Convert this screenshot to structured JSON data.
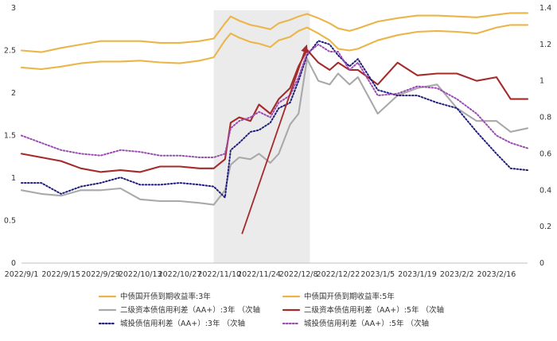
{
  "chart_data": {
    "type": "line",
    "x_ticks": [
      "2022/9/1",
      "2022/9/15",
      "2022/9/29",
      "2022/10/13",
      "2022/10/27",
      "2022/11/10",
      "2022/11/24",
      "2022/12/8",
      "2022/12/22",
      "2023/1/5",
      "2023/1/19",
      "2023/2/2",
      "2023/2/16"
    ],
    "x_start": "2022/9/1",
    "x_end": "2023/2/27",
    "y_left": {
      "ticks": [
        "0",
        "0.5",
        "1",
        "1.5",
        "2",
        "2.5",
        "3"
      ],
      "range": [
        0,
        3
      ]
    },
    "y_right": {
      "ticks": [
        "0",
        "0.2",
        "0.4",
        "0.6",
        "0.8",
        "1",
        "1.2",
        "1.4"
      ],
      "range": [
        0,
        1.4
      ]
    },
    "shaded_region": {
      "from": "2022/11/8",
      "to": "2022/12/12"
    },
    "arrow": {
      "from": [
        "2022/11/18",
        0.16
      ],
      "to": [
        "2022/12/11",
        1.2
      ],
      "color": "#A52A2A"
    },
    "legend": {
      "position": "bottom"
    },
    "series": [
      {
        "name": "中债国开债到期收益率:3年",
        "axis": "left",
        "color": "#EBB549",
        "dash": "solid",
        "points": [
          [
            "2022/9/1",
            2.3
          ],
          [
            "2022/9/8",
            2.28
          ],
          [
            "2022/9/15",
            2.31
          ],
          [
            "2022/9/22",
            2.35
          ],
          [
            "2022/9/29",
            2.37
          ],
          [
            "2022/10/6",
            2.37
          ],
          [
            "2022/10/13",
            2.38
          ],
          [
            "2022/10/20",
            2.36
          ],
          [
            "2022/10/27",
            2.35
          ],
          [
            "2022/11/3",
            2.38
          ],
          [
            "2022/11/8",
            2.42
          ],
          [
            "2022/11/12",
            2.62
          ],
          [
            "2022/11/14",
            2.7
          ],
          [
            "2022/11/17",
            2.65
          ],
          [
            "2022/11/21",
            2.6
          ],
          [
            "2022/11/24",
            2.58
          ],
          [
            "2022/11/28",
            2.54
          ],
          [
            "2022/12/1",
            2.62
          ],
          [
            "2022/12/5",
            2.66
          ],
          [
            "2022/12/8",
            2.73
          ],
          [
            "2022/12/11",
            2.77
          ],
          [
            "2022/12/15",
            2.7
          ],
          [
            "2022/12/19",
            2.62
          ],
          [
            "2022/12/22",
            2.52
          ],
          [
            "2022/12/26",
            2.5
          ],
          [
            "2022/12/29",
            2.52
          ],
          [
            "2023/1/5",
            2.62
          ],
          [
            "2023/1/12",
            2.68
          ],
          [
            "2023/1/19",
            2.72
          ],
          [
            "2023/1/26",
            2.73
          ],
          [
            "2023/2/2",
            2.72
          ],
          [
            "2023/2/9",
            2.7
          ],
          [
            "2023/2/16",
            2.77
          ],
          [
            "2023/2/21",
            2.8
          ],
          [
            "2023/2/27",
            2.8
          ]
        ]
      },
      {
        "name": "中债国开债到期收益率:5年",
        "axis": "left",
        "color": "#EBB549",
        "dash": "solid",
        "points": [
          [
            "2022/9/1",
            2.5
          ],
          [
            "2022/9/8",
            2.48
          ],
          [
            "2022/9/15",
            2.53
          ],
          [
            "2022/9/22",
            2.57
          ],
          [
            "2022/9/29",
            2.61
          ],
          [
            "2022/10/6",
            2.61
          ],
          [
            "2022/10/13",
            2.61
          ],
          [
            "2022/10/20",
            2.59
          ],
          [
            "2022/10/27",
            2.59
          ],
          [
            "2022/11/3",
            2.61
          ],
          [
            "2022/11/8",
            2.64
          ],
          [
            "2022/11/12",
            2.82
          ],
          [
            "2022/11/14",
            2.9
          ],
          [
            "2022/11/17",
            2.85
          ],
          [
            "2022/11/21",
            2.8
          ],
          [
            "2022/11/24",
            2.78
          ],
          [
            "2022/11/28",
            2.75
          ],
          [
            "2022/12/1",
            2.82
          ],
          [
            "2022/12/5",
            2.86
          ],
          [
            "2022/12/8",
            2.9
          ],
          [
            "2022/12/11",
            2.93
          ],
          [
            "2022/12/15",
            2.88
          ],
          [
            "2022/12/19",
            2.82
          ],
          [
            "2022/12/22",
            2.76
          ],
          [
            "2022/12/26",
            2.73
          ],
          [
            "2022/12/29",
            2.76
          ],
          [
            "2023/1/5",
            2.84
          ],
          [
            "2023/1/12",
            2.88
          ],
          [
            "2023/1/19",
            2.91
          ],
          [
            "2023/1/26",
            2.91
          ],
          [
            "2023/2/2",
            2.9
          ],
          [
            "2023/2/9",
            2.89
          ],
          [
            "2023/2/16",
            2.92
          ],
          [
            "2023/2/21",
            2.94
          ],
          [
            "2023/2/27",
            2.94
          ]
        ]
      },
      {
        "name": "二级资本债信用利差（AA+）:3年 （次轴",
        "axis": "right",
        "color": "#A9A9A9",
        "dash": "solid",
        "points": [
          [
            "2022/9/1",
            0.4
          ],
          [
            "2022/9/8",
            0.38
          ],
          [
            "2022/9/15",
            0.37
          ],
          [
            "2022/9/22",
            0.4
          ],
          [
            "2022/9/29",
            0.4
          ],
          [
            "2022/10/6",
            0.41
          ],
          [
            "2022/10/13",
            0.35
          ],
          [
            "2022/10/20",
            0.34
          ],
          [
            "2022/10/27",
            0.34
          ],
          [
            "2022/11/3",
            0.33
          ],
          [
            "2022/11/8",
            0.32
          ],
          [
            "2022/11/12",
            0.4
          ],
          [
            "2022/11/14",
            0.54
          ],
          [
            "2022/11/17",
            0.58
          ],
          [
            "2022/11/21",
            0.57
          ],
          [
            "2022/11/24",
            0.6
          ],
          [
            "2022/11/28",
            0.55
          ],
          [
            "2022/12/1",
            0.6
          ],
          [
            "2022/12/5",
            0.76
          ],
          [
            "2022/12/8",
            0.82
          ],
          [
            "2022/12/11",
            1.12
          ],
          [
            "2022/12/15",
            1.0
          ],
          [
            "2022/12/19",
            0.98
          ],
          [
            "2022/12/22",
            1.04
          ],
          [
            "2022/12/26",
            0.98
          ],
          [
            "2022/12/29",
            1.02
          ],
          [
            "2023/1/5",
            0.82
          ],
          [
            "2023/1/12",
            0.92
          ],
          [
            "2023/1/19",
            0.96
          ],
          [
            "2023/1/26",
            0.98
          ],
          [
            "2023/2/2",
            0.85
          ],
          [
            "2023/2/9",
            0.78
          ],
          [
            "2023/2/16",
            0.78
          ],
          [
            "2023/2/21",
            0.72
          ],
          [
            "2023/2/27",
            0.74
          ]
        ]
      },
      {
        "name": "二级资本债信用利差（AA+）:5年 （次轴",
        "axis": "right",
        "color": "#A52A2A",
        "dash": "solid",
        "points": [
          [
            "2022/9/1",
            0.6
          ],
          [
            "2022/9/8",
            0.58
          ],
          [
            "2022/9/15",
            0.56
          ],
          [
            "2022/9/22",
            0.52
          ],
          [
            "2022/9/29",
            0.5
          ],
          [
            "2022/10/6",
            0.51
          ],
          [
            "2022/10/13",
            0.5
          ],
          [
            "2022/10/20",
            0.53
          ],
          [
            "2022/10/27",
            0.53
          ],
          [
            "2022/11/3",
            0.52
          ],
          [
            "2022/11/8",
            0.52
          ],
          [
            "2022/11/12",
            0.57
          ],
          [
            "2022/11/14",
            0.77
          ],
          [
            "2022/11/17",
            0.8
          ],
          [
            "2022/11/21",
            0.78
          ],
          [
            "2022/11/24",
            0.87
          ],
          [
            "2022/11/28",
            0.82
          ],
          [
            "2022/12/1",
            0.9
          ],
          [
            "2022/12/5",
            0.96
          ],
          [
            "2022/12/8",
            1.08
          ],
          [
            "2022/12/11",
            1.17
          ],
          [
            "2022/12/15",
            1.1
          ],
          [
            "2022/12/19",
            1.06
          ],
          [
            "2022/12/22",
            1.1
          ],
          [
            "2022/12/26",
            1.06
          ],
          [
            "2022/12/29",
            1.06
          ],
          [
            "2023/1/5",
            0.98
          ],
          [
            "2023/1/12",
            1.1
          ],
          [
            "2023/1/19",
            1.03
          ],
          [
            "2023/1/26",
            1.04
          ],
          [
            "2023/2/2",
            1.04
          ],
          [
            "2023/2/9",
            1.0
          ],
          [
            "2023/2/16",
            1.02
          ],
          [
            "2023/2/21",
            0.9
          ],
          [
            "2023/2/27",
            0.9
          ]
        ]
      },
      {
        "name": "城投债信用利差（AA+）:3年 （次轴",
        "axis": "right",
        "color": "#1F1F7A",
        "dash": "dotted",
        "points": [
          [
            "2022/9/1",
            0.44
          ],
          [
            "2022/9/8",
            0.44
          ],
          [
            "2022/9/15",
            0.38
          ],
          [
            "2022/9/22",
            0.42
          ],
          [
            "2022/9/29",
            0.44
          ],
          [
            "2022/10/6",
            0.47
          ],
          [
            "2022/10/13",
            0.43
          ],
          [
            "2022/10/20",
            0.43
          ],
          [
            "2022/10/27",
            0.44
          ],
          [
            "2022/11/3",
            0.43
          ],
          [
            "2022/11/8",
            0.42
          ],
          [
            "2022/11/12",
            0.36
          ],
          [
            "2022/11/14",
            0.62
          ],
          [
            "2022/11/17",
            0.66
          ],
          [
            "2022/11/21",
            0.72
          ],
          [
            "2022/11/24",
            0.73
          ],
          [
            "2022/11/28",
            0.77
          ],
          [
            "2022/12/1",
            0.85
          ],
          [
            "2022/12/5",
            0.88
          ],
          [
            "2022/12/8",
            1.0
          ],
          [
            "2022/12/11",
            1.14
          ],
          [
            "2022/12/15",
            1.22
          ],
          [
            "2022/12/19",
            1.2
          ],
          [
            "2022/12/22",
            1.14
          ],
          [
            "2022/12/26",
            1.08
          ],
          [
            "2022/12/29",
            1.12
          ],
          [
            "2023/1/5",
            0.95
          ],
          [
            "2023/1/12",
            0.92
          ],
          [
            "2023/1/19",
            0.92
          ],
          [
            "2023/1/26",
            0.88
          ],
          [
            "2023/2/2",
            0.85
          ],
          [
            "2023/2/9",
            0.72
          ],
          [
            "2023/2/16",
            0.6
          ],
          [
            "2023/2/21",
            0.52
          ],
          [
            "2023/2/27",
            0.51
          ]
        ]
      },
      {
        "name": "城投债信用利差（AA+）:5年 （次轴",
        "axis": "right",
        "color": "#9B4BB4",
        "dash": "dotted",
        "points": [
          [
            "2022/9/1",
            0.7
          ],
          [
            "2022/9/8",
            0.66
          ],
          [
            "2022/9/15",
            0.62
          ],
          [
            "2022/9/22",
            0.6
          ],
          [
            "2022/9/29",
            0.59
          ],
          [
            "2022/10/6",
            0.62
          ],
          [
            "2022/10/13",
            0.61
          ],
          [
            "2022/10/20",
            0.59
          ],
          [
            "2022/10/27",
            0.59
          ],
          [
            "2022/11/3",
            0.58
          ],
          [
            "2022/11/8",
            0.58
          ],
          [
            "2022/11/12",
            0.6
          ],
          [
            "2022/11/14",
            0.74
          ],
          [
            "2022/11/17",
            0.78
          ],
          [
            "2022/11/21",
            0.8
          ],
          [
            "2022/11/24",
            0.83
          ],
          [
            "2022/11/28",
            0.8
          ],
          [
            "2022/12/1",
            0.88
          ],
          [
            "2022/12/5",
            0.92
          ],
          [
            "2022/12/8",
            1.02
          ],
          [
            "2022/12/11",
            1.15
          ],
          [
            "2022/12/15",
            1.2
          ],
          [
            "2022/12/19",
            1.16
          ],
          [
            "2022/12/22",
            1.16
          ],
          [
            "2022/12/26",
            1.06
          ],
          [
            "2022/12/29",
            1.1
          ],
          [
            "2023/1/5",
            0.92
          ],
          [
            "2023/1/12",
            0.93
          ],
          [
            "2023/1/19",
            0.97
          ],
          [
            "2023/1/26",
            0.96
          ],
          [
            "2023/2/2",
            0.9
          ],
          [
            "2023/2/9",
            0.82
          ],
          [
            "2023/2/16",
            0.7
          ],
          [
            "2023/2/21",
            0.66
          ],
          [
            "2023/2/27",
            0.63
          ]
        ]
      }
    ]
  }
}
